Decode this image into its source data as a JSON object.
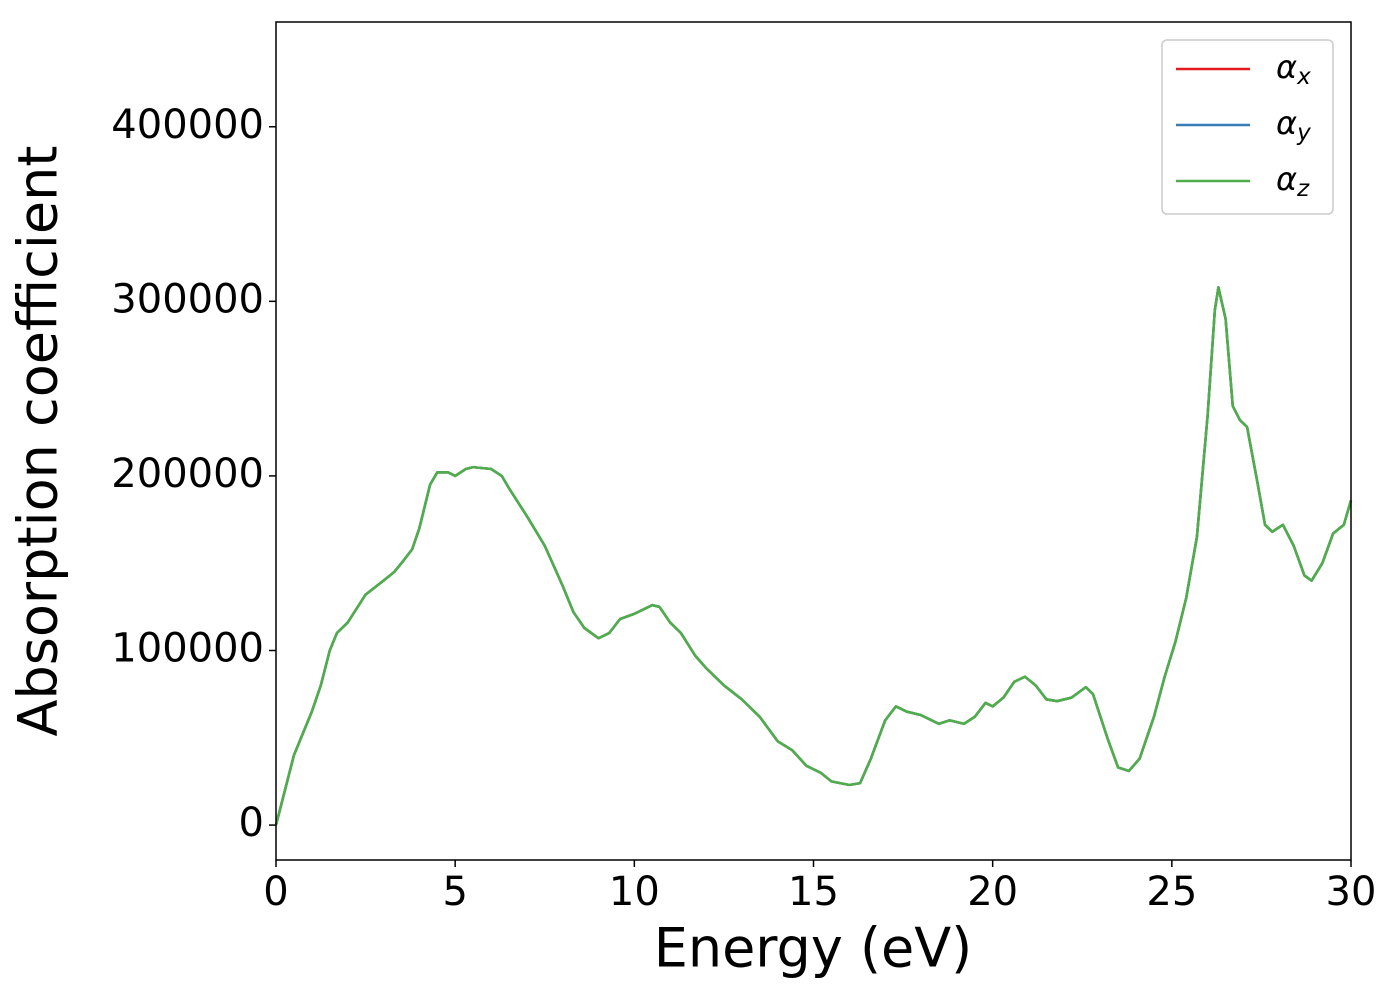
{
  "chart_data": {
    "type": "line",
    "xlabel": "Energy (eV)",
    "ylabel": "Absorption coefficient",
    "xlim": [
      0,
      30
    ],
    "ylim": [
      -20000,
      460000
    ],
    "xticks": [
      0,
      5,
      10,
      15,
      20,
      25,
      30
    ],
    "yticks": [
      0,
      100000,
      200000,
      300000,
      400000
    ],
    "legend": "upper right",
    "x": [
      0,
      0.25,
      0.5,
      1,
      1.25,
      1.5,
      1.7,
      2,
      2.5,
      3,
      3.3,
      3.5,
      3.8,
      4,
      4.3,
      4.5,
      4.8,
      5,
      5.3,
      5.5,
      6,
      6.3,
      6.5,
      7,
      7.5,
      8,
      8.3,
      8.6,
      9,
      9.3,
      9.6,
      10,
      10.5,
      10.7,
      11,
      11.3,
      11.7,
      12,
      12.5,
      13,
      13.5,
      14,
      14.4,
      14.8,
      15.2,
      15.5,
      16,
      16.3,
      16.6,
      17,
      17.3,
      17.6,
      18,
      18.5,
      18.8,
      19.2,
      19.5,
      19.8,
      20,
      20.3,
      20.6,
      20.9,
      21.2,
      21.5,
      21.8,
      22.2,
      22.6,
      22.8,
      23.2,
      23.5,
      23.8,
      24.1,
      24.5,
      24.8,
      25.1,
      25.4,
      25.7,
      26,
      26.2,
      26.3,
      26.5,
      26.7,
      26.9,
      27.1,
      27.4,
      27.6,
      27.8,
      28.1,
      28.4,
      28.7,
      28.9,
      29.2,
      29.5,
      29.8,
      30
    ],
    "series": [
      {
        "name": "αx",
        "color": "#e41a1c",
        "values": [
          0,
          20000,
          40000,
          65000,
          80000,
          100000,
          110000,
          116000,
          132000,
          140000,
          145000,
          150000,
          158000,
          170000,
          195000,
          202000,
          202000,
          200000,
          204000,
          205000,
          204000,
          200000,
          193000,
          177000,
          160000,
          137000,
          122000,
          113000,
          107000,
          110000,
          118000,
          121000,
          126000,
          125000,
          116000,
          110000,
          97000,
          90000,
          80000,
          72000,
          62000,
          48000,
          43000,
          34000,
          30000,
          25000,
          23000,
          24000,
          38000,
          60000,
          68000,
          65000,
          63000,
          58000,
          60000,
          58000,
          62000,
          70000,
          68000,
          73000,
          82000,
          85000,
          80000,
          72000,
          71000,
          73000,
          79000,
          75000,
          50000,
          33000,
          31000,
          38000,
          62000,
          85000,
          105000,
          130000,
          165000,
          235000,
          295000,
          308000,
          290000,
          240000,
          232000,
          228000,
          195000,
          172000,
          168000,
          172000,
          160000,
          143000,
          140000,
          150000,
          167000,
          172000,
          186000
        ]
      },
      {
        "name": "αy",
        "color": "#377eb8",
        "values": [
          0,
          20000,
          40000,
          65000,
          80000,
          100000,
          110000,
          116000,
          132000,
          140000,
          145000,
          150000,
          158000,
          170000,
          195000,
          202000,
          202000,
          200000,
          204000,
          205000,
          204000,
          200000,
          193000,
          177000,
          160000,
          137000,
          122000,
          113000,
          107000,
          110000,
          118000,
          121000,
          126000,
          125000,
          116000,
          110000,
          97000,
          90000,
          80000,
          72000,
          62000,
          48000,
          43000,
          34000,
          30000,
          25000,
          23000,
          24000,
          38000,
          60000,
          68000,
          65000,
          63000,
          58000,
          60000,
          58000,
          62000,
          70000,
          68000,
          73000,
          82000,
          85000,
          80000,
          72000,
          71000,
          73000,
          79000,
          75000,
          50000,
          33000,
          31000,
          38000,
          62000,
          85000,
          105000,
          130000,
          165000,
          235000,
          295000,
          308000,
          290000,
          240000,
          232000,
          228000,
          195000,
          172000,
          168000,
          172000,
          160000,
          143000,
          140000,
          150000,
          167000,
          172000,
          186000
        ]
      },
      {
        "name": "αz",
        "color": "#4daf4a",
        "values": [
          0,
          20000,
          40000,
          65000,
          80000,
          100000,
          110000,
          116000,
          132000,
          140000,
          145000,
          150000,
          158000,
          170000,
          195000,
          202000,
          202000,
          200000,
          204000,
          205000,
          204000,
          200000,
          193000,
          177000,
          160000,
          137000,
          122000,
          113000,
          107000,
          110000,
          118000,
          121000,
          126000,
          125000,
          116000,
          110000,
          97000,
          90000,
          80000,
          72000,
          62000,
          48000,
          43000,
          34000,
          30000,
          25000,
          23000,
          24000,
          38000,
          60000,
          68000,
          65000,
          63000,
          58000,
          60000,
          58000,
          62000,
          70000,
          68000,
          73000,
          82000,
          85000,
          80000,
          72000,
          71000,
          73000,
          79000,
          75000,
          50000,
          33000,
          31000,
          38000,
          62000,
          85000,
          105000,
          130000,
          165000,
          235000,
          295000,
          308000,
          290000,
          240000,
          232000,
          228000,
          195000,
          172000,
          168000,
          172000,
          160000,
          143000,
          140000,
          150000,
          167000,
          172000,
          186000
        ]
      }
    ]
  }
}
